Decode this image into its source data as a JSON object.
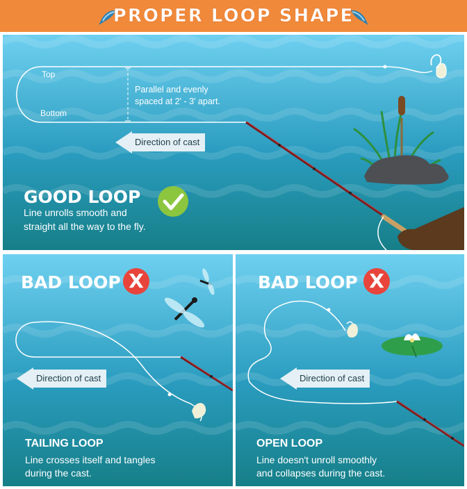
{
  "banner": {
    "title": "PROPER LOOP SHAPE"
  },
  "good_loop": {
    "top_label": "Top",
    "bottom_label": "Bottom",
    "spacing_note_line1": "Parallel and evenly",
    "spacing_note_line2": "spaced at 2' - 3' apart.",
    "direction_label": "Direction of cast",
    "heading": "GOOD LOOP",
    "description_line1": "Line unrolls smooth and",
    "description_line2": "straight all the way to the fly."
  },
  "tailing_loop": {
    "heading": "BAD LOOP",
    "badge": "X",
    "direction_label": "Direction of cast",
    "name": "TAILING LOOP",
    "description_line1": "Line crosses itself and tangles",
    "description_line2": "during the cast."
  },
  "open_loop": {
    "heading": "BAD LOOP",
    "badge": "X",
    "direction_label": "Direction of cast",
    "name": "OPEN LOOP",
    "description_line1": "Line doesn't unroll smoothly",
    "description_line2": "and collapses during the cast."
  },
  "colors": {
    "banner": "#f08a3a",
    "water_light": "#5ec8ec",
    "water_deep": "#1f8aa8",
    "water_bottom": "#177a7d",
    "check_green": "#8cc63f",
    "x_red": "#e8443c"
  }
}
